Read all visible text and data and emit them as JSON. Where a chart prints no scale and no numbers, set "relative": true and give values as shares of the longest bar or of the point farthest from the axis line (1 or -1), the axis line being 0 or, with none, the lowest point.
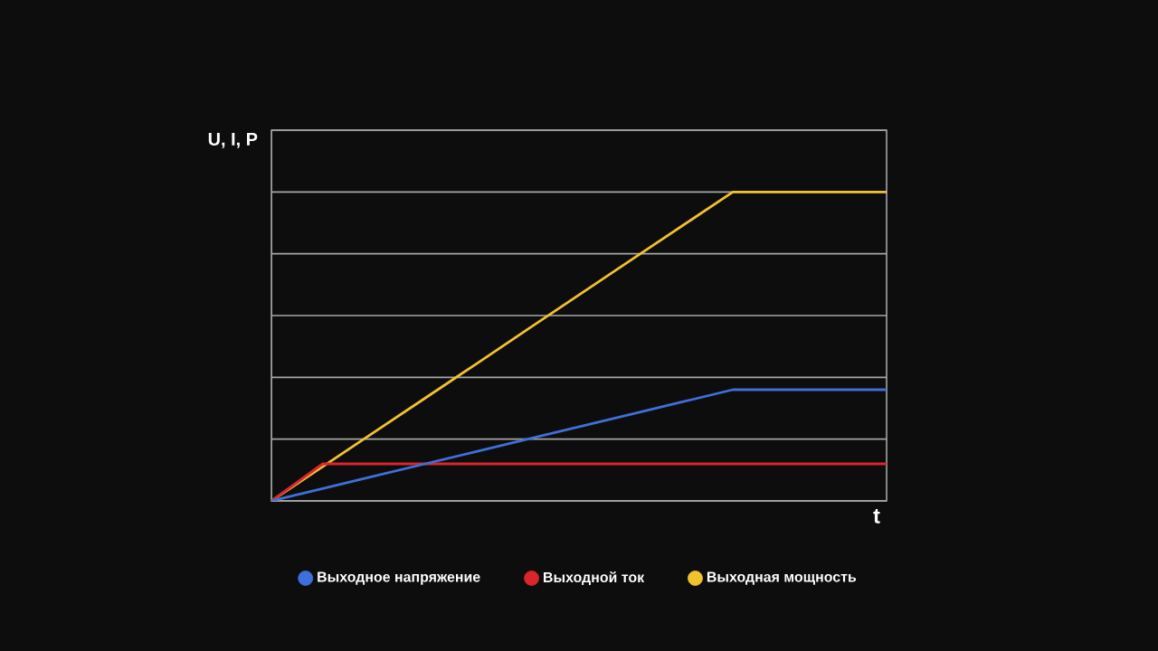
{
  "chart_data": {
    "type": "line",
    "relative": true,
    "xlabel": "t",
    "ylabel": "U, I, P",
    "grid": "y",
    "legend": "bottom",
    "marker": "none",
    "line_style": "solid",
    "categories": [
      null,
      null,
      null,
      null,
      null,
      null,
      null,
      null,
      null,
      null,
      null,
      null,
      null
    ],
    "series": [
      {
        "name": "Выходное напряжение",
        "color": "#3f6fd8",
        "values": [
          0,
          0.04,
          0.08,
          0.12,
          0.16,
          0.2,
          0.24,
          0.28,
          0.32,
          0.36,
          0.36,
          0.36,
          0.36
        ]
      },
      {
        "name": "Выходной ток",
        "color": "#d9262c",
        "values": [
          0,
          0.12,
          0.12,
          0.12,
          0.12,
          0.12,
          0.12,
          0.12,
          0.12,
          0.12,
          0.12,
          0.12,
          0.12
        ]
      },
      {
        "name": "Выходная мощность",
        "color": "#f2c12e",
        "values": [
          0,
          0.111,
          0.222,
          0.333,
          0.444,
          0.556,
          0.667,
          0.778,
          0.889,
          1.0,
          1.0,
          1.0,
          1.0
        ]
      }
    ]
  }
}
